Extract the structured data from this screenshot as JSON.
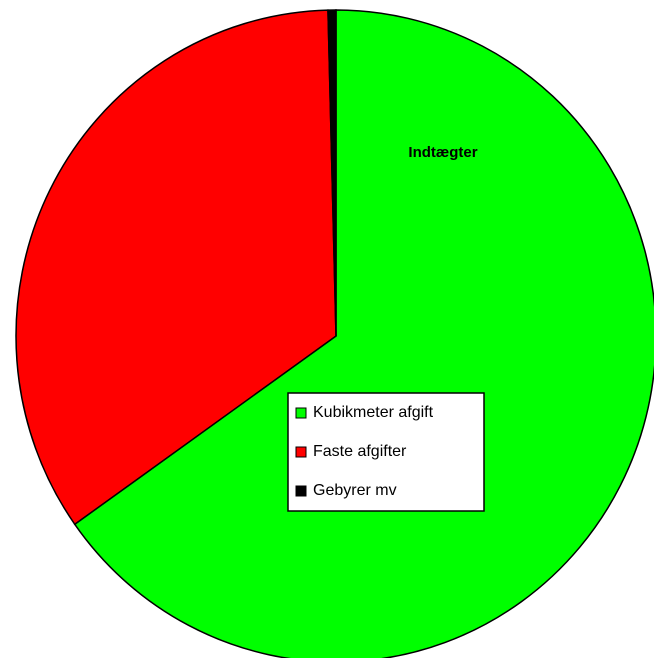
{
  "chart_data": {
    "type": "pie",
    "title": "Indtægter",
    "categories": [
      "Kubikmeter afgift",
      "Faste afgifter",
      "Gebyrer mv"
    ],
    "values": [
      65.2,
      34.4,
      0.4
    ],
    "colors": [
      "#00ff00",
      "#ff0000",
      "#000000"
    ]
  }
}
